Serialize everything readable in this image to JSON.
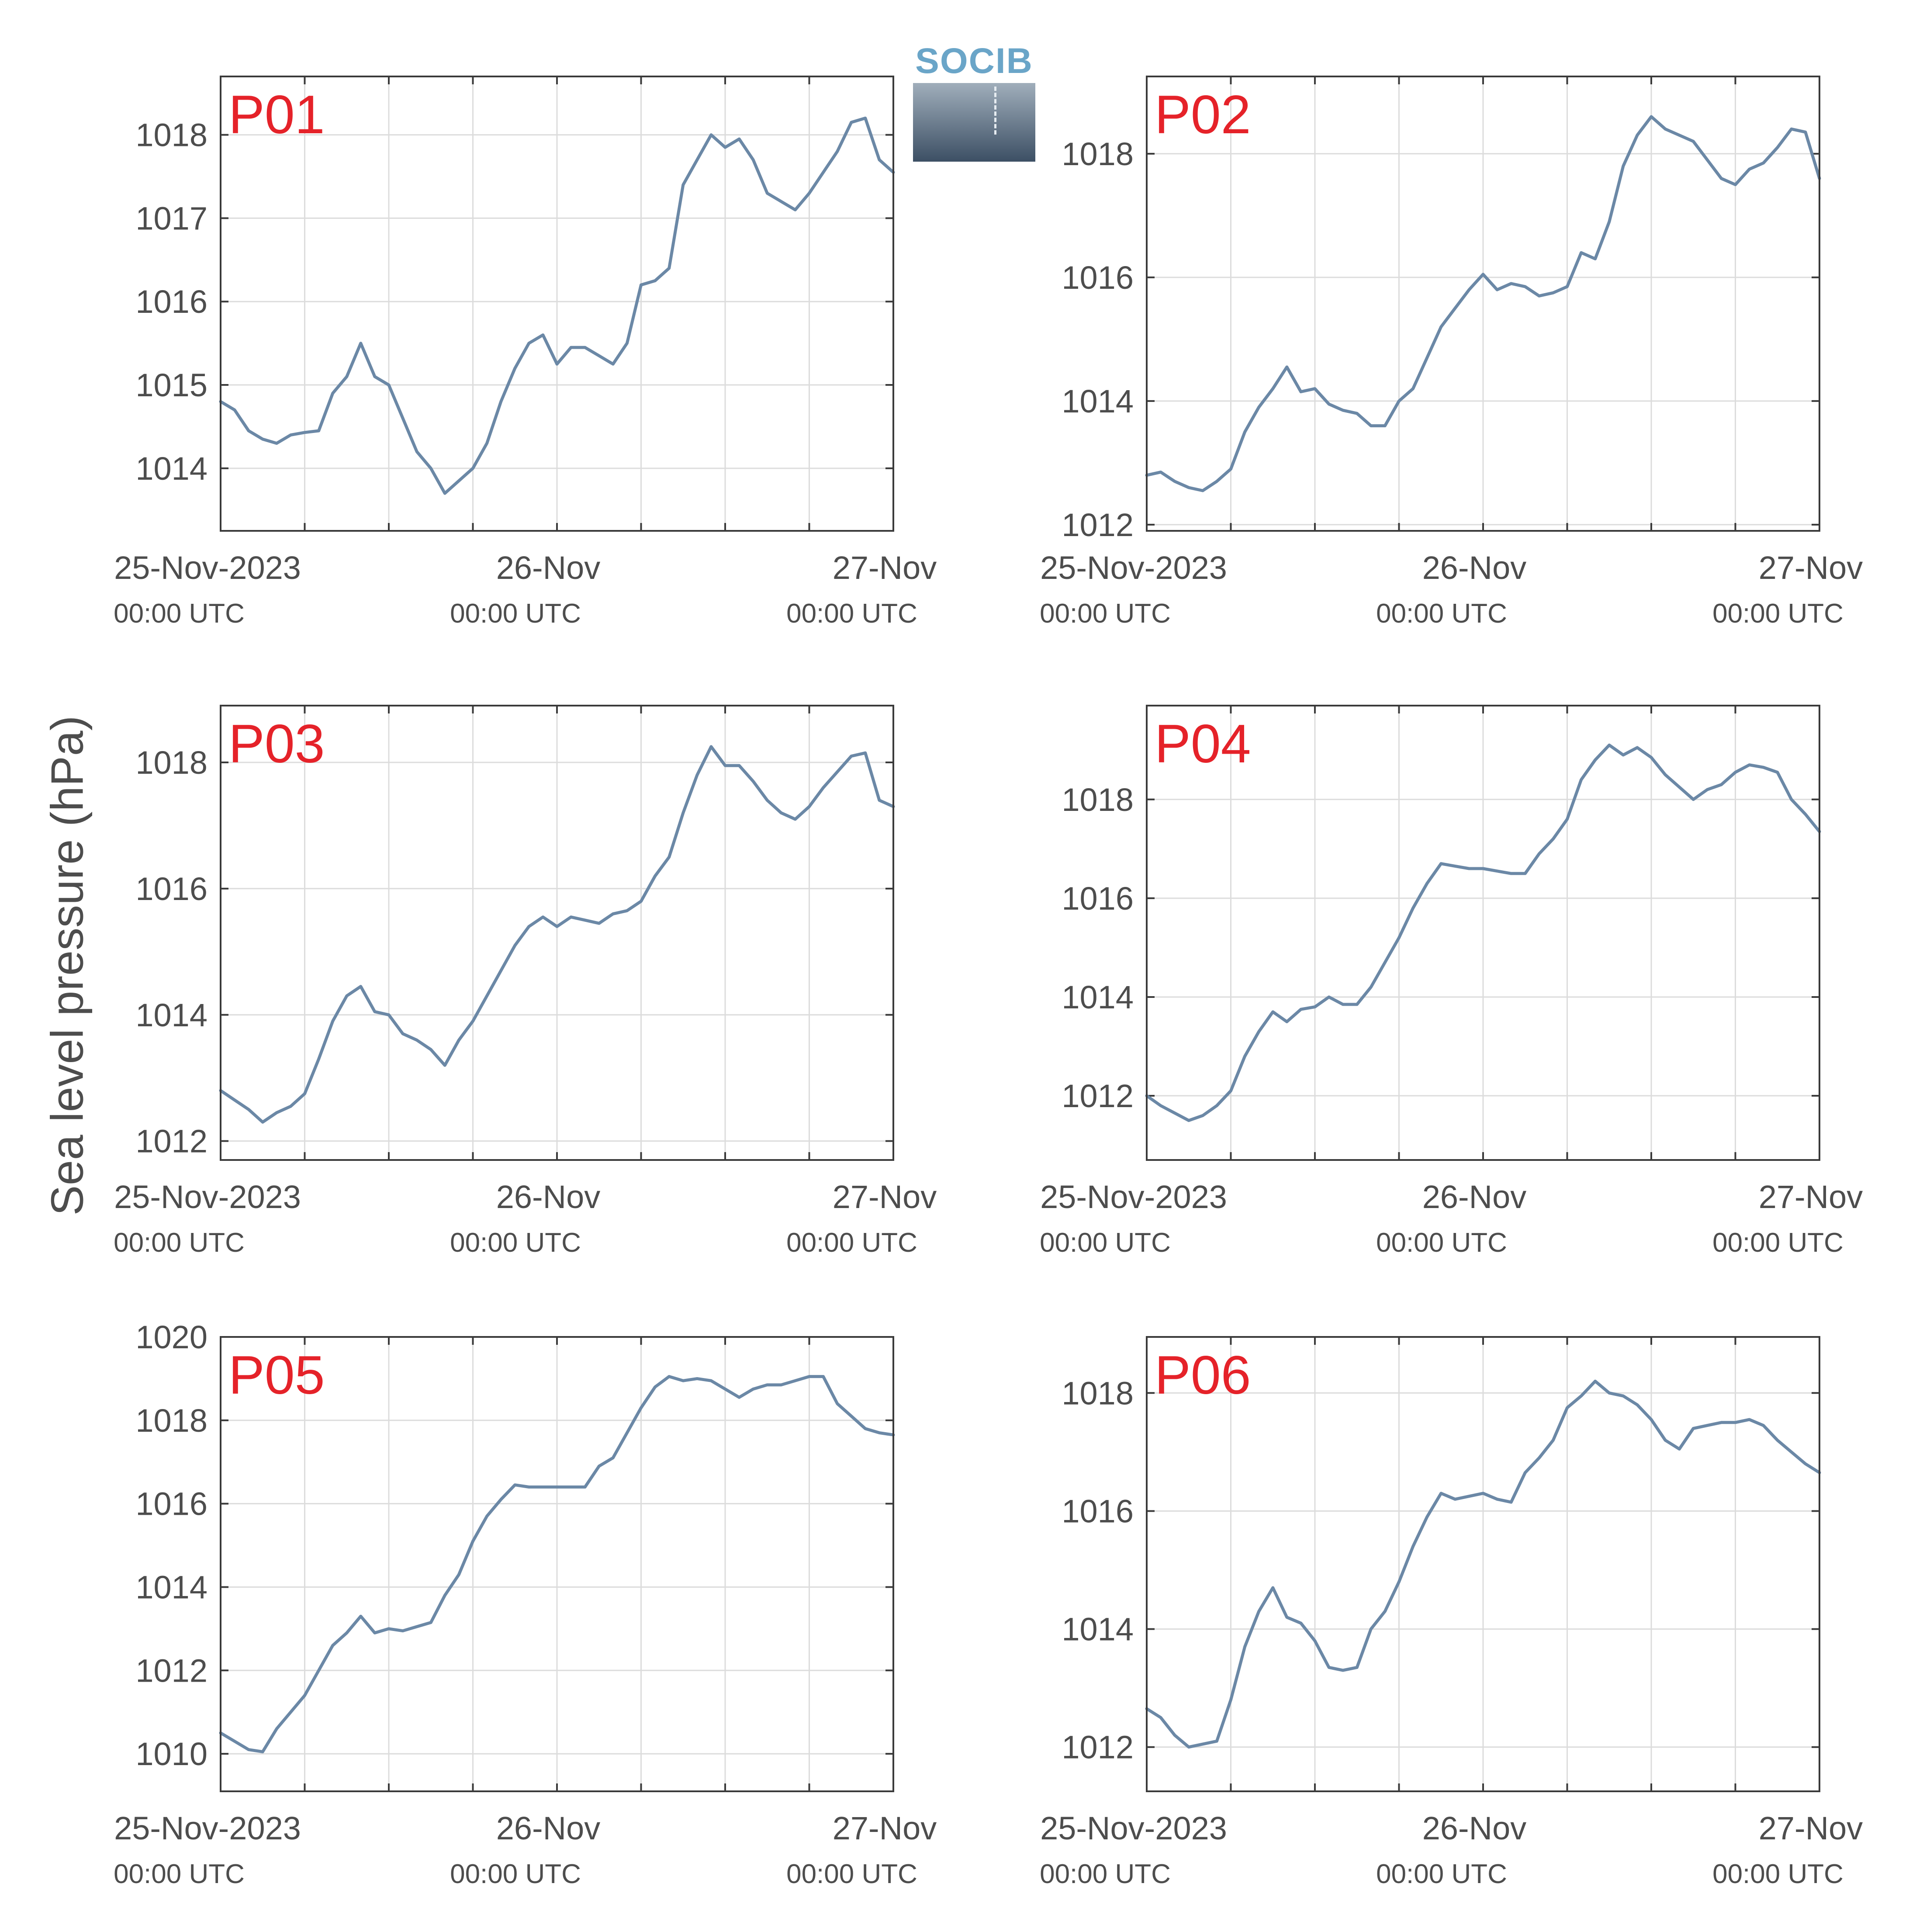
{
  "ylabel": "Sea level pressure (hPa)",
  "logo_text": "SOCIB",
  "colors": {
    "line": "#6b88a6",
    "panel_label": "#e52229",
    "axis": "#3a3a3a",
    "grid": "#dcdcdc",
    "text": "#4d4d4d"
  },
  "x_ticks": {
    "labels": [
      "25-Nov-2023",
      "26-Nov",
      "27-Nov"
    ],
    "sublabels": [
      "00:00 UTC",
      "00:00 UTC",
      "00:00 UTC"
    ]
  },
  "chart_data": [
    {
      "type": "line",
      "title": "P01",
      "xlabel": "",
      "ylabel": "Sea level pressure (hPa)",
      "x_range": [
        "2023-11-25T00:00",
        "2023-11-27T00:00"
      ],
      "ylim": [
        1013.25,
        1018.7
      ],
      "yticks": [
        1014,
        1015,
        1016,
        1017,
        1018
      ],
      "grid": true,
      "series": [
        {
          "x": [
            "2023-11-25T00:00",
            "2023-11-25T01:00",
            "2023-11-25T02:00",
            "2023-11-25T03:00",
            "2023-11-25T04:00",
            "2023-11-25T05:00",
            "2023-11-25T06:00",
            "2023-11-25T07:00",
            "2023-11-25T08:00",
            "2023-11-25T09:00",
            "2023-11-25T10:00",
            "2023-11-25T11:00",
            "2023-11-25T12:00",
            "2023-11-25T13:00",
            "2023-11-25T14:00",
            "2023-11-25T15:00",
            "2023-11-25T16:00",
            "2023-11-25T17:00",
            "2023-11-25T18:00",
            "2023-11-25T19:00",
            "2023-11-25T20:00",
            "2023-11-25T21:00",
            "2023-11-25T22:00",
            "2023-11-25T23:00",
            "2023-11-26T00:00",
            "2023-11-26T01:00",
            "2023-11-26T02:00",
            "2023-11-26T03:00",
            "2023-11-26T04:00",
            "2023-11-26T05:00",
            "2023-11-26T06:00",
            "2023-11-26T07:00",
            "2023-11-26T08:00",
            "2023-11-26T09:00",
            "2023-11-26T10:00",
            "2023-11-26T11:00",
            "2023-11-26T12:00",
            "2023-11-26T13:00",
            "2023-11-26T14:00",
            "2023-11-26T15:00",
            "2023-11-26T16:00",
            "2023-11-26T17:00",
            "2023-11-26T18:00",
            "2023-11-26T19:00",
            "2023-11-26T20:00",
            "2023-11-26T21:00",
            "2023-11-26T22:00",
            "2023-11-26T23:00",
            "2023-11-27T00:00"
          ],
          "y": [
            1014.8,
            1014.7,
            1014.45,
            1014.35,
            1014.3,
            1014.4,
            1014.43,
            1014.45,
            1014.9,
            1015.1,
            1015.5,
            1015.1,
            1015.0,
            1014.6,
            1014.2,
            1014.0,
            1013.7,
            1013.85,
            1014.0,
            1014.3,
            1014.8,
            1015.2,
            1015.5,
            1015.6,
            1015.25,
            1015.45,
            1015.45,
            1015.35,
            1015.25,
            1015.5,
            1016.2,
            1016.25,
            1016.4,
            1017.4,
            1017.7,
            1018.0,
            1017.85,
            1017.95,
            1017.7,
            1017.3,
            1017.2,
            1017.1,
            1017.3,
            1017.55,
            1017.8,
            1018.15,
            1018.2,
            1017.7,
            1017.55
          ]
        }
      ]
    },
    {
      "type": "line",
      "title": "P02",
      "xlabel": "",
      "ylabel": "Sea level pressure (hPa)",
      "x_range": [
        "2023-11-25T00:00",
        "2023-11-27T00:00"
      ],
      "ylim": [
        1011.9,
        1019.25
      ],
      "yticks": [
        1012,
        1014,
        1016,
        1018
      ],
      "grid": true,
      "series": [
        {
          "x": [
            "2023-11-25T00:00",
            "2023-11-25T01:00",
            "2023-11-25T02:00",
            "2023-11-25T03:00",
            "2023-11-25T04:00",
            "2023-11-25T05:00",
            "2023-11-25T06:00",
            "2023-11-25T07:00",
            "2023-11-25T08:00",
            "2023-11-25T09:00",
            "2023-11-25T10:00",
            "2023-11-25T11:00",
            "2023-11-25T12:00",
            "2023-11-25T13:00",
            "2023-11-25T14:00",
            "2023-11-25T15:00",
            "2023-11-25T16:00",
            "2023-11-25T17:00",
            "2023-11-25T18:00",
            "2023-11-25T19:00",
            "2023-11-25T20:00",
            "2023-11-25T21:00",
            "2023-11-25T22:00",
            "2023-11-25T23:00",
            "2023-11-26T00:00",
            "2023-11-26T01:00",
            "2023-11-26T02:00",
            "2023-11-26T03:00",
            "2023-11-26T04:00",
            "2023-11-26T05:00",
            "2023-11-26T06:00",
            "2023-11-26T07:00",
            "2023-11-26T08:00",
            "2023-11-26T09:00",
            "2023-11-26T10:00",
            "2023-11-26T11:00",
            "2023-11-26T12:00",
            "2023-11-26T13:00",
            "2023-11-26T14:00",
            "2023-11-26T15:00",
            "2023-11-26T16:00",
            "2023-11-26T17:00",
            "2023-11-26T18:00",
            "2023-11-26T19:00",
            "2023-11-26T20:00",
            "2023-11-26T21:00",
            "2023-11-26T22:00",
            "2023-11-26T23:00",
            "2023-11-27T00:00"
          ],
          "y": [
            1012.8,
            1012.85,
            1012.7,
            1012.6,
            1012.55,
            1012.7,
            1012.9,
            1013.5,
            1013.9,
            1014.2,
            1014.55,
            1014.15,
            1014.2,
            1013.95,
            1013.85,
            1013.8,
            1013.6,
            1013.6,
            1014.0,
            1014.2,
            1014.7,
            1015.2,
            1015.5,
            1015.8,
            1016.05,
            1015.8,
            1015.9,
            1015.85,
            1015.7,
            1015.75,
            1015.85,
            1016.4,
            1016.3,
            1016.9,
            1017.8,
            1018.3,
            1018.6,
            1018.4,
            1018.3,
            1018.2,
            1017.9,
            1017.6,
            1017.5,
            1017.75,
            1017.85,
            1018.1,
            1018.4,
            1018.35,
            1017.6
          ]
        }
      ]
    },
    {
      "type": "line",
      "title": "P03",
      "xlabel": "",
      "ylabel": "Sea level pressure (hPa)",
      "x_range": [
        "2023-11-25T00:00",
        "2023-11-27T00:00"
      ],
      "ylim": [
        1011.7,
        1018.9
      ],
      "yticks": [
        1012,
        1014,
        1016,
        1018
      ],
      "grid": true,
      "series": [
        {
          "x": [
            "2023-11-25T00:00",
            "2023-11-25T01:00",
            "2023-11-25T02:00",
            "2023-11-25T03:00",
            "2023-11-25T04:00",
            "2023-11-25T05:00",
            "2023-11-25T06:00",
            "2023-11-25T07:00",
            "2023-11-25T08:00",
            "2023-11-25T09:00",
            "2023-11-25T10:00",
            "2023-11-25T11:00",
            "2023-11-25T12:00",
            "2023-11-25T13:00",
            "2023-11-25T14:00",
            "2023-11-25T15:00",
            "2023-11-25T16:00",
            "2023-11-25T17:00",
            "2023-11-25T18:00",
            "2023-11-25T19:00",
            "2023-11-25T20:00",
            "2023-11-25T21:00",
            "2023-11-25T22:00",
            "2023-11-25T23:00",
            "2023-11-26T00:00",
            "2023-11-26T01:00",
            "2023-11-26T02:00",
            "2023-11-26T03:00",
            "2023-11-26T04:00",
            "2023-11-26T05:00",
            "2023-11-26T06:00",
            "2023-11-26T07:00",
            "2023-11-26T08:00",
            "2023-11-26T09:00",
            "2023-11-26T10:00",
            "2023-11-26T11:00",
            "2023-11-26T12:00",
            "2023-11-26T13:00",
            "2023-11-26T14:00",
            "2023-11-26T15:00",
            "2023-11-26T16:00",
            "2023-11-26T17:00",
            "2023-11-26T18:00",
            "2023-11-26T19:00",
            "2023-11-26T20:00",
            "2023-11-26T21:00",
            "2023-11-26T22:00",
            "2023-11-26T23:00",
            "2023-11-27T00:00"
          ],
          "y": [
            1012.8,
            1012.65,
            1012.5,
            1012.3,
            1012.45,
            1012.55,
            1012.75,
            1013.3,
            1013.9,
            1014.3,
            1014.45,
            1014.05,
            1014.0,
            1013.7,
            1013.6,
            1013.45,
            1013.2,
            1013.6,
            1013.9,
            1014.3,
            1014.7,
            1015.1,
            1015.4,
            1015.55,
            1015.4,
            1015.55,
            1015.5,
            1015.45,
            1015.6,
            1015.65,
            1015.8,
            1016.2,
            1016.5,
            1017.2,
            1017.8,
            1018.25,
            1017.95,
            1017.95,
            1017.7,
            1017.4,
            1017.2,
            1017.1,
            1017.3,
            1017.6,
            1017.85,
            1018.1,
            1018.15,
            1017.4,
            1017.3
          ]
        }
      ]
    },
    {
      "type": "line",
      "title": "P04",
      "xlabel": "",
      "ylabel": "Sea level pressure (hPa)",
      "x_range": [
        "2023-11-25T00:00",
        "2023-11-27T00:00"
      ],
      "ylim": [
        1010.7,
        1019.9
      ],
      "yticks": [
        1012,
        1014,
        1016,
        1018
      ],
      "grid": true,
      "series": [
        {
          "x": [
            "2023-11-25T00:00",
            "2023-11-25T01:00",
            "2023-11-25T02:00",
            "2023-11-25T03:00",
            "2023-11-25T04:00",
            "2023-11-25T05:00",
            "2023-11-25T06:00",
            "2023-11-25T07:00",
            "2023-11-25T08:00",
            "2023-11-25T09:00",
            "2023-11-25T10:00",
            "2023-11-25T11:00",
            "2023-11-25T12:00",
            "2023-11-25T13:00",
            "2023-11-25T14:00",
            "2023-11-25T15:00",
            "2023-11-25T16:00",
            "2023-11-25T17:00",
            "2023-11-25T18:00",
            "2023-11-25T19:00",
            "2023-11-25T20:00",
            "2023-11-25T21:00",
            "2023-11-25T22:00",
            "2023-11-25T23:00",
            "2023-11-26T00:00",
            "2023-11-26T01:00",
            "2023-11-26T02:00",
            "2023-11-26T03:00",
            "2023-11-26T04:00",
            "2023-11-26T05:00",
            "2023-11-26T06:00",
            "2023-11-26T07:00",
            "2023-11-26T08:00",
            "2023-11-26T09:00",
            "2023-11-26T10:00",
            "2023-11-26T11:00",
            "2023-11-26T12:00",
            "2023-11-26T13:00",
            "2023-11-26T14:00",
            "2023-11-26T15:00",
            "2023-11-26T16:00",
            "2023-11-26T17:00",
            "2023-11-26T18:00",
            "2023-11-26T19:00",
            "2023-11-26T20:00",
            "2023-11-26T21:00",
            "2023-11-26T22:00",
            "2023-11-26T23:00",
            "2023-11-27T00:00"
          ],
          "y": [
            1012.0,
            1011.8,
            1011.65,
            1011.5,
            1011.6,
            1011.8,
            1012.1,
            1012.8,
            1013.3,
            1013.7,
            1013.5,
            1013.75,
            1013.8,
            1014.0,
            1013.85,
            1013.85,
            1014.2,
            1014.7,
            1015.2,
            1015.8,
            1016.3,
            1016.7,
            1016.65,
            1016.6,
            1016.6,
            1016.55,
            1016.5,
            1016.5,
            1016.9,
            1017.2,
            1017.6,
            1018.4,
            1018.8,
            1019.1,
            1018.9,
            1019.05,
            1018.85,
            1018.5,
            1018.25,
            1018.0,
            1018.2,
            1018.3,
            1018.55,
            1018.7,
            1018.65,
            1018.55,
            1018.0,
            1017.7,
            1017.35
          ]
        }
      ]
    },
    {
      "type": "line",
      "title": "P05",
      "xlabel": "",
      "ylabel": "Sea level pressure (hPa)",
      "x_range": [
        "2023-11-25T00:00",
        "2023-11-27T00:00"
      ],
      "ylim": [
        1009.1,
        1020
      ],
      "yticks": [
        1010,
        1012,
        1014,
        1016,
        1018,
        1020
      ],
      "grid": true,
      "series": [
        {
          "x": [
            "2023-11-25T00:00",
            "2023-11-25T01:00",
            "2023-11-25T02:00",
            "2023-11-25T03:00",
            "2023-11-25T04:00",
            "2023-11-25T05:00",
            "2023-11-25T06:00",
            "2023-11-25T07:00",
            "2023-11-25T08:00",
            "2023-11-25T09:00",
            "2023-11-25T10:00",
            "2023-11-25T11:00",
            "2023-11-25T12:00",
            "2023-11-25T13:00",
            "2023-11-25T14:00",
            "2023-11-25T15:00",
            "2023-11-25T16:00",
            "2023-11-25T17:00",
            "2023-11-25T18:00",
            "2023-11-25T19:00",
            "2023-11-25T20:00",
            "2023-11-25T21:00",
            "2023-11-25T22:00",
            "2023-11-25T23:00",
            "2023-11-26T00:00",
            "2023-11-26T01:00",
            "2023-11-26T02:00",
            "2023-11-26T03:00",
            "2023-11-26T04:00",
            "2023-11-26T05:00",
            "2023-11-26T06:00",
            "2023-11-26T07:00",
            "2023-11-26T08:00",
            "2023-11-26T09:00",
            "2023-11-26T10:00",
            "2023-11-26T11:00",
            "2023-11-26T12:00",
            "2023-11-26T13:00",
            "2023-11-26T14:00",
            "2023-11-26T15:00",
            "2023-11-26T16:00",
            "2023-11-26T17:00",
            "2023-11-26T18:00",
            "2023-11-26T19:00",
            "2023-11-26T20:00",
            "2023-11-26T21:00",
            "2023-11-26T22:00",
            "2023-11-26T23:00",
            "2023-11-27T00:00"
          ],
          "y": [
            1010.5,
            1010.3,
            1010.1,
            1010.05,
            1010.6,
            1011.0,
            1011.4,
            1012.0,
            1012.6,
            1012.9,
            1013.3,
            1012.9,
            1013.0,
            1012.95,
            1013.05,
            1013.15,
            1013.8,
            1014.3,
            1015.1,
            1015.7,
            1016.1,
            1016.45,
            1016.4,
            1016.4,
            1016.4,
            1016.4,
            1016.4,
            1016.9,
            1017.1,
            1017.7,
            1018.3,
            1018.8,
            1019.05,
            1018.95,
            1019.0,
            1018.95,
            1018.75,
            1018.55,
            1018.75,
            1018.85,
            1018.85,
            1018.95,
            1019.05,
            1019.05,
            1018.4,
            1018.1,
            1017.8,
            1017.7,
            1017.65
          ]
        }
      ]
    },
    {
      "type": "line",
      "title": "P06",
      "xlabel": "",
      "ylabel": "Sea level pressure (hPa)",
      "x_range": [
        "2023-11-25T00:00",
        "2023-11-27T00:00"
      ],
      "ylim": [
        1011.25,
        1018.95
      ],
      "yticks": [
        1012,
        1014,
        1016,
        1018
      ],
      "grid": true,
      "series": [
        {
          "x": [
            "2023-11-25T00:00",
            "2023-11-25T01:00",
            "2023-11-25T02:00",
            "2023-11-25T03:00",
            "2023-11-25T04:00",
            "2023-11-25T05:00",
            "2023-11-25T06:00",
            "2023-11-25T07:00",
            "2023-11-25T08:00",
            "2023-11-25T09:00",
            "2023-11-25T10:00",
            "2023-11-25T11:00",
            "2023-11-25T12:00",
            "2023-11-25T13:00",
            "2023-11-25T14:00",
            "2023-11-25T15:00",
            "2023-11-25T16:00",
            "2023-11-25T17:00",
            "2023-11-25T18:00",
            "2023-11-25T19:00",
            "2023-11-25T20:00",
            "2023-11-25T21:00",
            "2023-11-25T22:00",
            "2023-11-25T23:00",
            "2023-11-26T00:00",
            "2023-11-26T01:00",
            "2023-11-26T02:00",
            "2023-11-26T03:00",
            "2023-11-26T04:00",
            "2023-11-26T05:00",
            "2023-11-26T06:00",
            "2023-11-26T07:00",
            "2023-11-26T08:00",
            "2023-11-26T09:00",
            "2023-11-26T10:00",
            "2023-11-26T11:00",
            "2023-11-26T12:00",
            "2023-11-26T13:00",
            "2023-11-26T14:00",
            "2023-11-26T15:00",
            "2023-11-26T16:00",
            "2023-11-26T17:00",
            "2023-11-26T18:00",
            "2023-11-26T19:00",
            "2023-11-26T20:00",
            "2023-11-26T21:00",
            "2023-11-26T22:00",
            "2023-11-26T23:00",
            "2023-11-27T00:00"
          ],
          "y": [
            1012.65,
            1012.5,
            1012.2,
            1012.0,
            1012.05,
            1012.1,
            1012.8,
            1013.7,
            1014.3,
            1014.7,
            1014.2,
            1014.1,
            1013.8,
            1013.35,
            1013.3,
            1013.35,
            1014.0,
            1014.3,
            1014.8,
            1015.4,
            1015.9,
            1016.3,
            1016.2,
            1016.25,
            1016.3,
            1016.2,
            1016.15,
            1016.65,
            1016.9,
            1017.2,
            1017.75,
            1017.95,
            1018.2,
            1018.0,
            1017.95,
            1017.8,
            1017.55,
            1017.2,
            1017.05,
            1017.4,
            1017.45,
            1017.5,
            1017.5,
            1017.55,
            1017.45,
            1017.2,
            1017.0,
            1016.8,
            1016.65
          ]
        }
      ]
    }
  ]
}
